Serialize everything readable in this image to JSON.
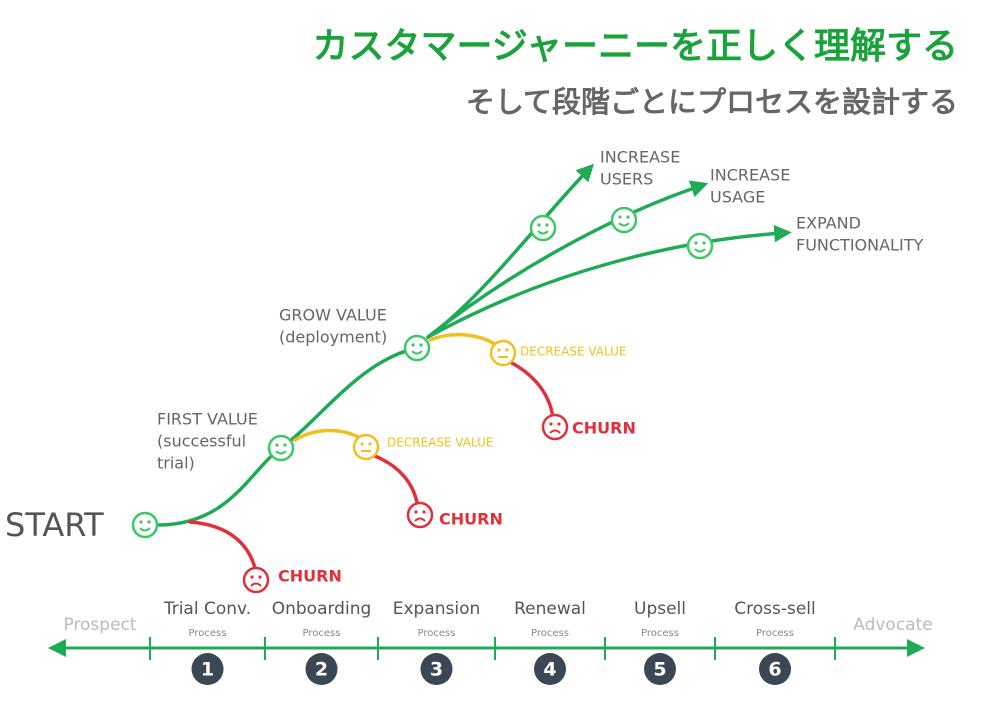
{
  "header": {
    "title": "カスタマージャーニーを正しく理解する",
    "subtitle": "そして段階ごとにプロセスを設計する"
  },
  "journey": {
    "start": "START",
    "first_value": [
      "FIRST VALUE",
      "(successful",
      "trial)"
    ],
    "grow_value": [
      "GROW VALUE",
      "(deployment)"
    ],
    "outcomes": [
      [
        "INCREASE",
        "USERS"
      ],
      [
        "INCREASE",
        "USAGE"
      ],
      [
        "EXPAND",
        "FUNCTIONALITY"
      ]
    ],
    "decrease_value": [
      "DECREASE VALUE",
      "DECREASE VALUE"
    ],
    "churn": [
      "CHURN",
      "CHURN",
      "CHURN"
    ]
  },
  "timeline": {
    "start": "Prospect",
    "end": "Advocate",
    "stages": [
      {
        "name": "Trial Conv.",
        "sub": "Process",
        "number": 1
      },
      {
        "name": "Onboarding",
        "sub": "Process",
        "number": 2
      },
      {
        "name": "Expansion",
        "sub": "Process",
        "number": 3
      },
      {
        "name": "Renewal",
        "sub": "Process",
        "number": 4
      },
      {
        "name": "Upsell",
        "sub": "Process",
        "number": 5
      },
      {
        "name": "Cross-sell",
        "sub": "Process",
        "number": 6
      }
    ]
  }
}
